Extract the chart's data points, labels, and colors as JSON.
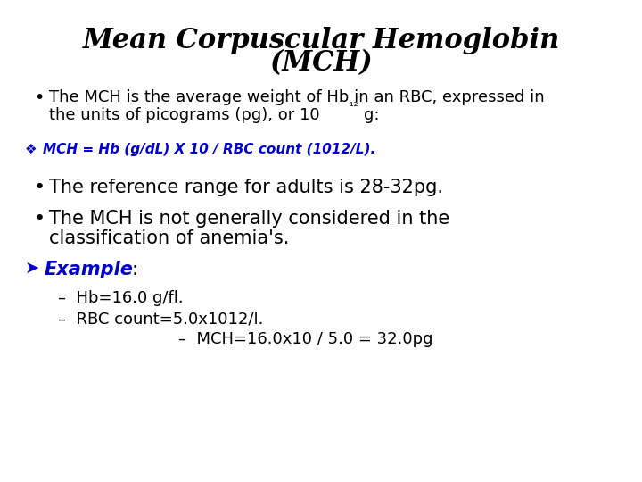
{
  "title_line1": "Mean Corpuscular Hemoglobin",
  "title_line2": "(MCH)",
  "title_fontsize": 22,
  "bg_color": "#ffffff",
  "text_color": "#000000",
  "blue_color": "#0000cd",
  "body_fontsize": 13,
  "formula_fontsize": 11,
  "formula": "MCH = Hb (g/dL) X 10 / RBC count (1012/L).",
  "bullet2": "The reference range for adults is 28-32pg.",
  "dash1": "–  Hb=16.0 g/fl.",
  "dash2": "–  RBC count=5.0x1012/l.",
  "dash3": "–  MCH=16.0x10 / 5.0 = 32.0pg"
}
